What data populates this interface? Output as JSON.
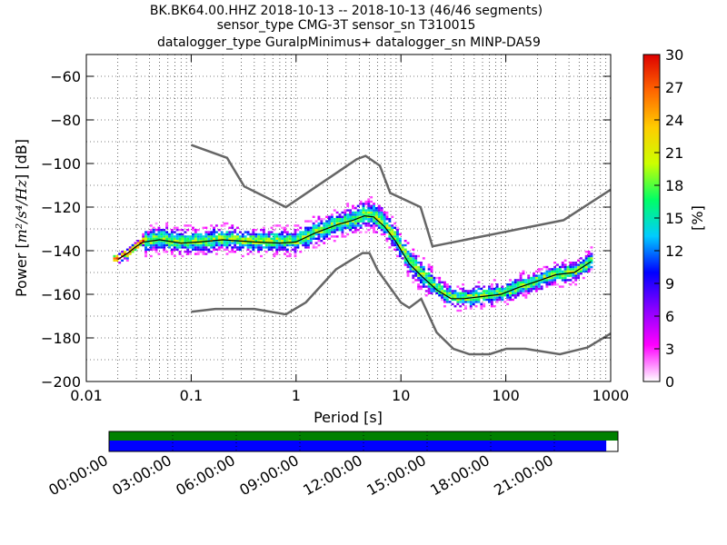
{
  "chart_data": {
    "type": "heatmap",
    "title_lines": [
      "BK.BK64.00.HHZ   2018-10-13 -- 2018-10-13  (46/46 segments)",
      "sensor_type CMG-3T sensor_sn T310015",
      "datalogger_type GuralpMinimus+ datalogger_sn MINP-DA59"
    ],
    "xlabel": "Period [s]",
    "ylabel_prefix": "Power [",
    "ylabel_unit": "m²/s⁴/Hz",
    "ylabel_suffix": "] [dB]",
    "x_scale": "log",
    "xlim": [
      0.01,
      1000
    ],
    "ylim": [
      -200,
      -50
    ],
    "x_ticks": [
      0.01,
      0.1,
      1,
      10,
      100,
      1000
    ],
    "x_tick_labels": [
      "0.01",
      "0.1",
      "1",
      "10",
      "100",
      "1000"
    ],
    "y_ticks": [
      -200,
      -180,
      -160,
      -140,
      -120,
      -100,
      -80,
      -60
    ],
    "y_tick_labels": [
      "−200",
      "−180",
      "−160",
      "−140",
      "−120",
      "−100",
      "−80",
      "−60"
    ],
    "grid": true,
    "colorbar": {
      "label": "[%]",
      "range": [
        0,
        30
      ],
      "ticks": [
        0,
        3,
        6,
        9,
        12,
        15,
        18,
        21,
        24,
        27,
        30
      ],
      "tick_labels": [
        "0",
        "3",
        "6",
        "9",
        "12",
        "15",
        "18",
        "21",
        "24",
        "27",
        "30"
      ],
      "colors": [
        "#ffffff",
        "#ff00ff",
        "#8800ff",
        "#0000ff",
        "#00ccff",
        "#00ff66",
        "#ccff00",
        "#ffcc00",
        "#ff6600",
        "#dd0000"
      ]
    },
    "noise_model_high": {
      "periods": [
        0.1,
        0.22,
        0.32,
        0.8,
        3.8,
        4.6,
        6.3,
        7.9,
        15.4,
        20,
        354.8,
        1000
      ],
      "db": [
        -91.5,
        -97.4,
        -110.5,
        -120,
        -98,
        -96.5,
        -101,
        -113.5,
        -120,
        -138,
        -126,
        -112
      ]
    },
    "noise_model_low": {
      "periods": [
        0.1,
        0.17,
        0.4,
        0.8,
        1.24,
        2.4,
        4.3,
        5,
        6,
        10,
        12,
        15.6,
        21.9,
        31.6,
        45,
        70,
        101,
        154,
        328,
        600,
        1000
      ],
      "db": [
        -168,
        -166.7,
        -166.7,
        -169.2,
        -163.7,
        -148.6,
        -141.1,
        -141.1,
        -149,
        -163.8,
        -166.2,
        -162.1,
        -177.5,
        -185,
        -187.5,
        -187.5,
        -185,
        -185,
        -187.5,
        -184.4,
        -178
      ]
    },
    "mode_curve": {
      "periods": [
        0.02,
        0.025,
        0.03,
        0.035,
        0.05,
        0.08,
        0.12,
        0.2,
        0.4,
        0.7,
        1,
        1.5,
        2.5,
        3.5,
        4.5,
        5.5,
        7,
        9,
        12,
        16,
        22,
        30,
        40,
        60,
        90,
        130,
        200,
        300,
        450,
        650
      ],
      "db": [
        -144,
        -141,
        -138,
        -136,
        -135,
        -136.5,
        -136,
        -135,
        -136,
        -136.5,
        -136,
        -132,
        -128,
        -126,
        -124,
        -124.5,
        -129,
        -136,
        -146,
        -152,
        -158,
        -162,
        -162,
        -161,
        -160,
        -157,
        -154,
        -151,
        -150,
        -145
      ]
    },
    "coverage": {
      "time_labels": [
        "00:00:00",
        "03:00:00",
        "06:00:00",
        "09:00:00",
        "12:00:00",
        "15:00:00",
        "18:00:00",
        "21:00:00"
      ],
      "data_fraction": 1.0,
      "processed_fraction": 0.977,
      "data_color": "#008000",
      "processed_color": "#0000ff"
    }
  }
}
